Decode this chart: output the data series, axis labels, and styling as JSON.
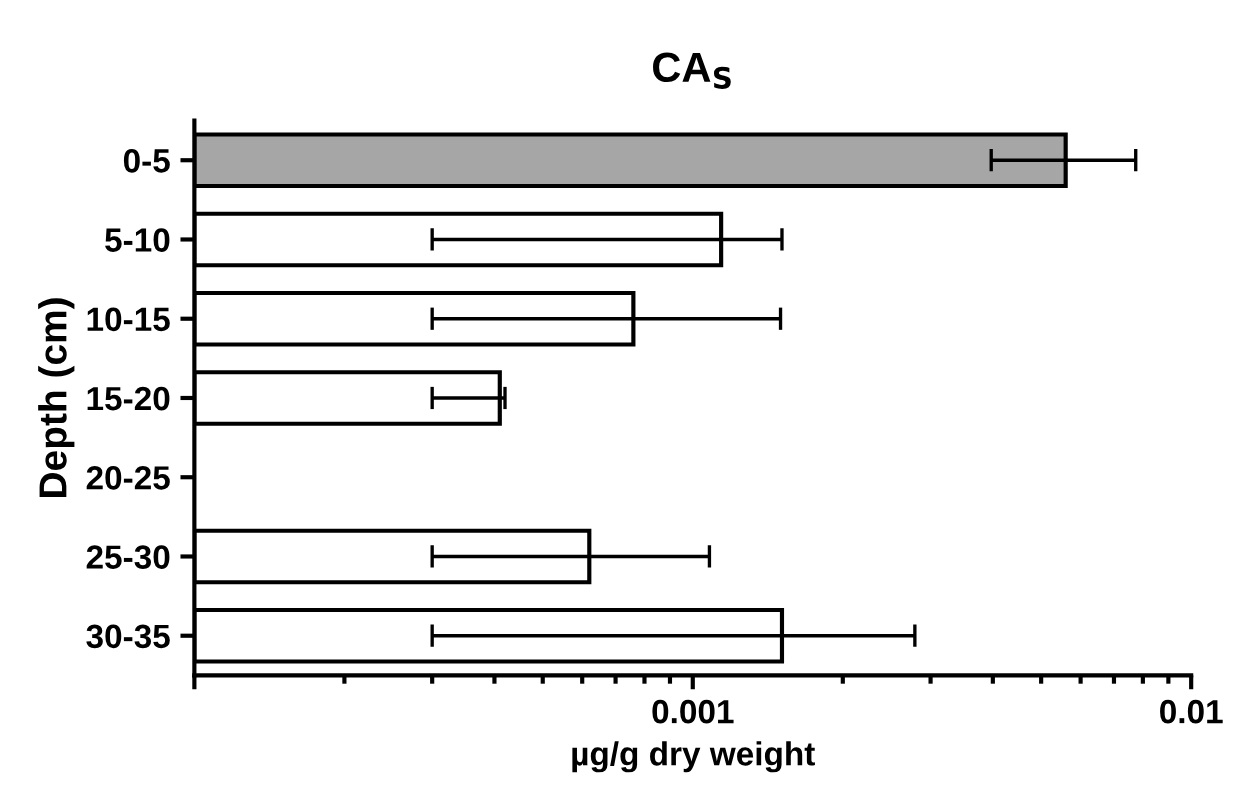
{
  "chart_data": {
    "type": "bar",
    "orientation": "horizontal",
    "title": "CA$_{S}$",
    "xlabel": "µg/g dry weight",
    "ylabel": "Depth (cm)",
    "categories": [
      "0-5",
      "5-10",
      "10-15",
      "15-20",
      "20-25",
      "25-30",
      "30-35"
    ],
    "values": [
      0.0056,
      0.00114,
      0.00076,
      0.00041,
      null,
      0.00062,
      0.00151
    ],
    "errors": [
      [
        0.00397,
        0.00774
      ],
      [
        0.0003,
        0.00151
      ],
      [
        0.0003,
        0.0015
      ],
      [
        0.0003,
        0.00042
      ],
      null,
      [
        0.0003,
        0.00108
      ],
      [
        0.0003,
        0.00279
      ]
    ],
    "colors": [
      "#a6a6a6",
      "#ffffff",
      "#ffffff",
      "#ffffff",
      "#ffffff",
      "#ffffff",
      "#ffffff"
    ],
    "log": "x",
    "xlim": [
      0.0001,
      0.01
    ],
    "xticks": [
      {
        "value": 0.0001,
        "label": null
      },
      0.001,
      0.01
    ],
    "grid": false,
    "legend": false
  }
}
